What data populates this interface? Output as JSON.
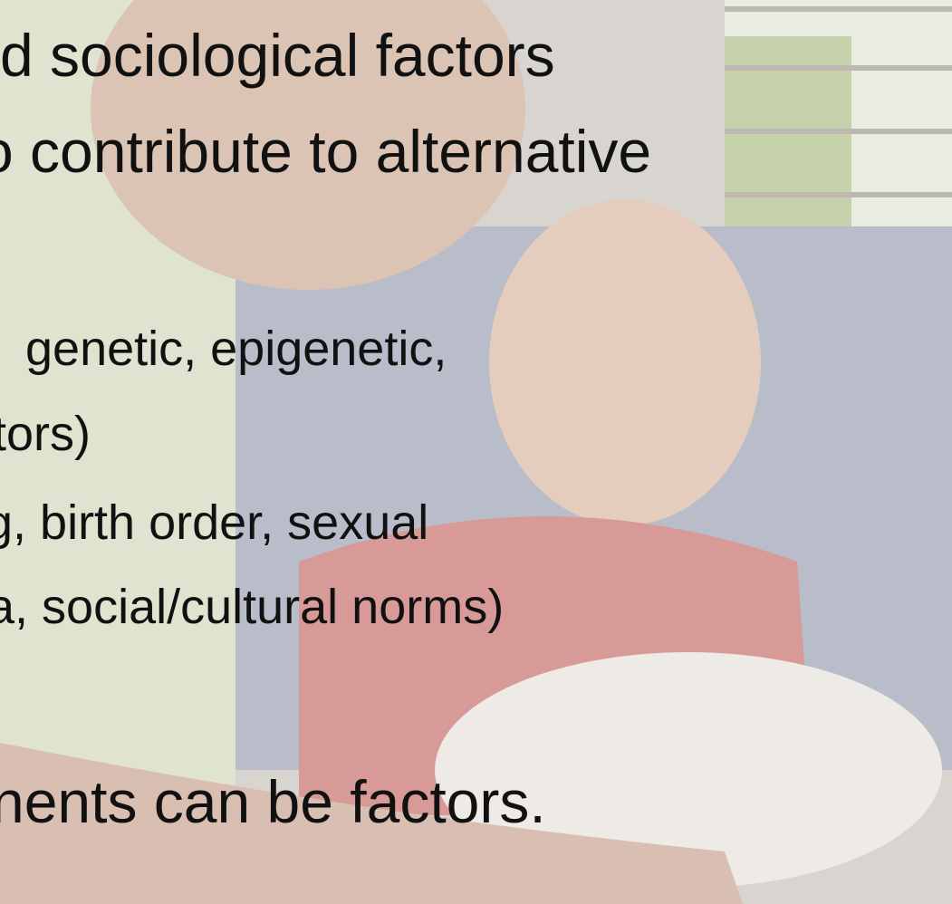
{
  "slide": {
    "lines": [
      "d sociological factors",
      "o contribute to alternative",
      "genetic, epigenetic,",
      "tors)",
      "g, birth order, sexual",
      "a, social/cultural norms)",
      "nents can be factors."
    ]
  }
}
